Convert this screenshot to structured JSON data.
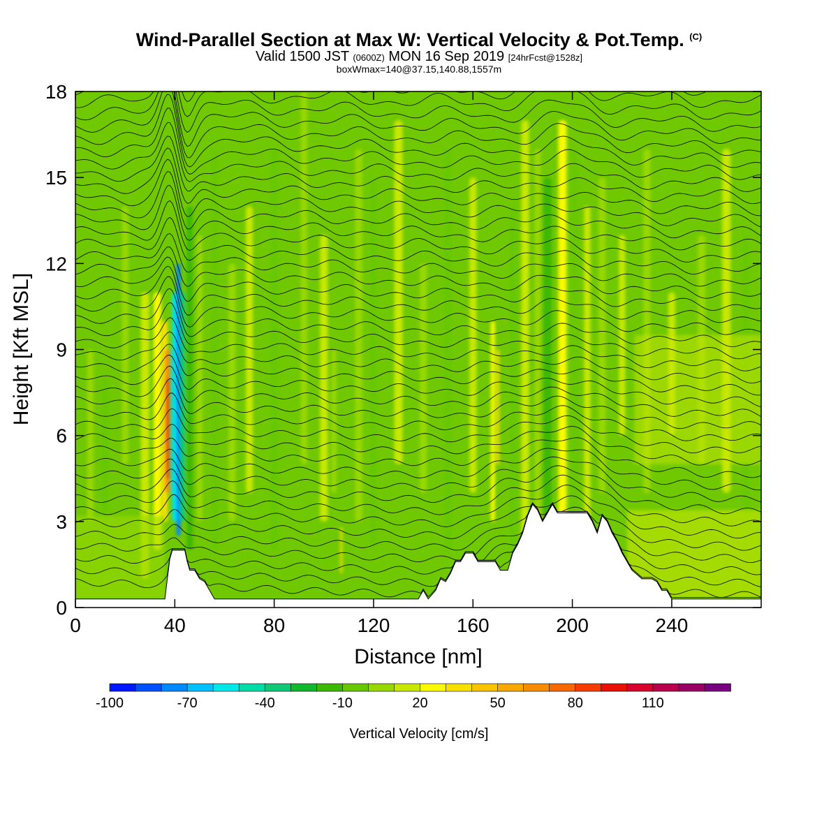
{
  "title": {
    "main": "Wind-Parallel Section at Max W: Vertical Velocity & Pot.Temp.",
    "copyright": "(C)",
    "valid_prefix": "Valid 1500 JST",
    "valid_utc": "(0600Z)",
    "valid_date": "MON 16 Sep 2019",
    "forecast": "[24hrFcst@1528z]",
    "box_info": "boxWmax=140@37.15,140.88,1557m"
  },
  "colors": {
    "scale": [
      "#0018ff",
      "#0050ff",
      "#0088ff",
      "#00c0ff",
      "#00e8e8",
      "#00dca8",
      "#10c878",
      "#10b830",
      "#3cb800",
      "#68c800",
      "#98d800",
      "#c8e800",
      "#fafa00",
      "#f8e000",
      "#f8c400",
      "#f8a800",
      "#f88c00",
      "#f86800",
      "#f83c00",
      "#e81000",
      "#d8002c",
      "#b8004c",
      "#980064",
      "#780080"
    ],
    "background": "#70c800"
  },
  "chart_data": {
    "type": "heatmap",
    "title": "Wind-Parallel Section at Max W: Vertical Velocity & Pot.Temp.",
    "xlabel": "Distance [nm]",
    "ylabel": "Height [Kft MSL]",
    "xlim": [
      0,
      276
    ],
    "ylim": [
      0,
      18
    ],
    "x_ticks": [
      0,
      40,
      80,
      120,
      160,
      200,
      240
    ],
    "y_ticks": [
      0,
      3,
      6,
      9,
      12,
      15,
      18
    ],
    "colorbar": {
      "label": "Vertical Velocity [cm/s]",
      "min": -100,
      "max": 140,
      "step": 10,
      "tick_labels": [
        -100,
        -70,
        -40,
        -10,
        20,
        50,
        80,
        110
      ]
    },
    "terrain_kft": [
      [
        0,
        0.3
      ],
      [
        36,
        0.3
      ],
      [
        37,
        1.0
      ],
      [
        38,
        1.7
      ],
      [
        39,
        2.0
      ],
      [
        44,
        2.0
      ],
      [
        45,
        1.6
      ],
      [
        46,
        1.3
      ],
      [
        48,
        1.3
      ],
      [
        50,
        1.0
      ],
      [
        52,
        0.9
      ],
      [
        54,
        0.6
      ],
      [
        56,
        0.3
      ],
      [
        58,
        0.3
      ],
      [
        138,
        0.3
      ],
      [
        140,
        0.6
      ],
      [
        142,
        0.3
      ],
      [
        145,
        0.6
      ],
      [
        147,
        1.0
      ],
      [
        149,
        0.9
      ],
      [
        151,
        1.2
      ],
      [
        153,
        1.6
      ],
      [
        155,
        1.6
      ],
      [
        157,
        1.9
      ],
      [
        160,
        1.9
      ],
      [
        162,
        1.6
      ],
      [
        169,
        1.6
      ],
      [
        171,
        1.3
      ],
      [
        174,
        1.3
      ],
      [
        176,
        1.9
      ],
      [
        178,
        2.2
      ],
      [
        180,
        2.6
      ],
      [
        182,
        3.2
      ],
      [
        184,
        3.6
      ],
      [
        186,
        3.4
      ],
      [
        188,
        3.0
      ],
      [
        190,
        3.3
      ],
      [
        192,
        3.6
      ],
      [
        194,
        3.3
      ],
      [
        206,
        3.3
      ],
      [
        208,
        3.0
      ],
      [
        210,
        2.6
      ],
      [
        212,
        3.2
      ],
      [
        214,
        3.0
      ],
      [
        216,
        2.6
      ],
      [
        218,
        2.3
      ],
      [
        220,
        1.9
      ],
      [
        222,
        1.6
      ],
      [
        224,
        1.3
      ],
      [
        228,
        1.0
      ],
      [
        232,
        1.0
      ],
      [
        234,
        0.9
      ],
      [
        236,
        0.6
      ],
      [
        238,
        0.6
      ],
      [
        240,
        0.3
      ],
      [
        276,
        0.3
      ]
    ],
    "vertical_velocity_features_cm_s": [
      {
        "x_nm": 37,
        "z_kft": 6.5,
        "w_max": 100
      },
      {
        "x_nm": 41,
        "z_kft": 5.0,
        "w_min": -90
      },
      {
        "x_nm": 170,
        "z_kft": 7.0,
        "w_max": 30
      },
      {
        "x_nm": 107,
        "z_kft": 1.6,
        "w_max": 30
      }
    ],
    "potential_temperature_contours": {
      "count": 44,
      "unit": "K"
    }
  },
  "axes": {
    "xlabel": "Distance [nm]",
    "ylabel": "Height [Kft MSL]",
    "x_ticks": [
      "0",
      "40",
      "80",
      "120",
      "160",
      "200",
      "240"
    ],
    "y_ticks": [
      "0",
      "3",
      "6",
      "9",
      "12",
      "15",
      "18"
    ]
  },
  "colorbar": {
    "label": "Vertical Velocity [cm/s]",
    "tick_labels": [
      "-100",
      "-70",
      "-40",
      "-10",
      "20",
      "50",
      "80",
      "110"
    ]
  }
}
